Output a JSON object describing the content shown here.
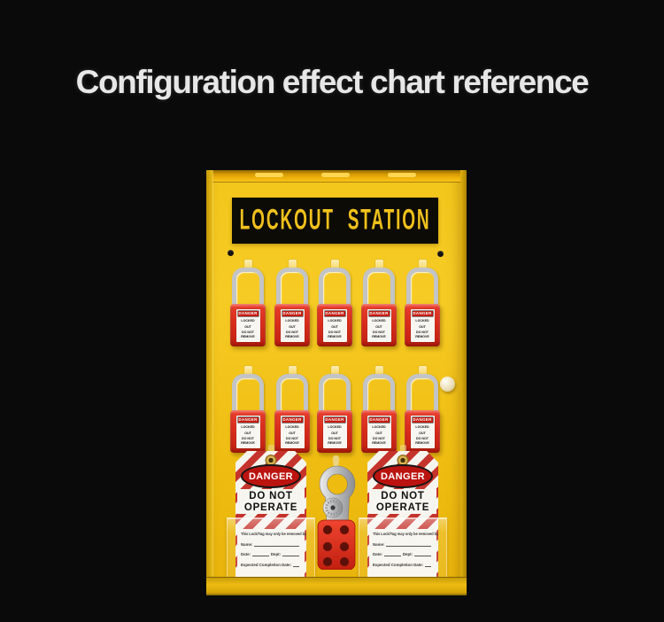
{
  "page": {
    "title": "Configuration effect chart reference",
    "background_color": "#0a0a0a",
    "title_color": "#e7e7e7"
  },
  "board": {
    "banner": "LOCKOUT STATION",
    "colors": {
      "face": "#f2c517",
      "top_rail": "#e8a906",
      "banner_bg": "#0d0b05",
      "banner_text": "#f0c11c"
    },
    "padlock": {
      "rows": 2,
      "per_row": 5,
      "body_color": "#d9291b",
      "shackle_color": "#c3c4c6",
      "label": {
        "header": "DANGER",
        "line1": "LOCKED",
        "line2": "OUT",
        "line3": "DO NOT REMOVE"
      }
    },
    "tag": {
      "danger": "DANGER",
      "line1": "DO NOT",
      "line2": "OPERATE",
      "removed_by": "This Lock/Tag may only be removed by:",
      "name_label": "Name:",
      "date_label": "Date:",
      "dept_label": "Dept:",
      "expected_label": "Expected Completion Date:",
      "stripe_color": "#c5342c",
      "oval_color": "#bb1410"
    },
    "hasp": {
      "hole_count": 6,
      "grip_color": "#df2d1c",
      "jaw_color": "#b9babc"
    }
  }
}
